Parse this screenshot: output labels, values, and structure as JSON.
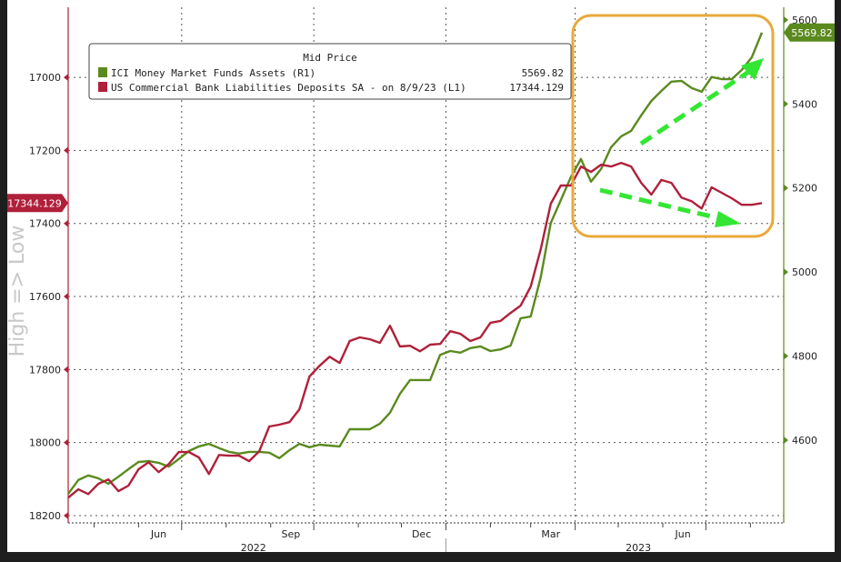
{
  "chart_data": {
    "type": "line",
    "legend": {
      "title": "Mid Price",
      "placement": "top-left",
      "entries": [
        {
          "label": "ICI Money Market Funds Assets  (R1)",
          "value": "5569.82",
          "color": "#5a8a1e"
        },
        {
          "label": "US Commercial Bank Liabilities Deposits SA -  on 8/9/23  (L1)",
          "value": "17344.129",
          "color": "#b0203a"
        }
      ]
    },
    "ylabel_left": "High => Low",
    "left_axis": {
      "inverted": true,
      "range": [
        16808,
        18220
      ],
      "ticks": [
        17000,
        17200,
        17400,
        17600,
        17800,
        18000,
        18200
      ],
      "color": "#b0203a"
    },
    "right_axis": {
      "range": [
        4403,
        5630
      ],
      "ticks": [
        4600,
        4800,
        5000,
        5200,
        5400,
        5600
      ],
      "color": "#5a8a1e"
    },
    "x_axis": {
      "start": "2022-04-13",
      "end": "2023-08-09",
      "month_labels": [
        {
          "label": "Jun",
          "date": "2022-06-15"
        },
        {
          "label": "Sep",
          "date": "2022-09-15"
        },
        {
          "label": "Dec",
          "date": "2022-12-15"
        },
        {
          "label": "Mar",
          "date": "2023-03-15"
        },
        {
          "label": "Jun",
          "date": "2023-06-15"
        }
      ],
      "year_labels": [
        {
          "label": "2022",
          "date": "2022-08-20"
        },
        {
          "label": "2023",
          "date": "2023-05-15"
        }
      ]
    },
    "grid": true,
    "frequency": "weekly",
    "series": [
      {
        "name": "ICI Money Market Funds Assets",
        "axis": "right",
        "color": "#5a8a1e",
        "values": [
          4472,
          4505,
          4516,
          4509,
          4496,
          4513,
          4531,
          4548,
          4550,
          4546,
          4537,
          4555,
          4574,
          4585,
          4591,
          4581,
          4572,
          4568,
          4572,
          4572,
          4570,
          4557,
          4576,
          4591,
          4583,
          4589,
          4587,
          4585,
          4626,
          4626,
          4626,
          4639,
          4665,
          4710,
          4743,
          4743,
          4743,
          4803,
          4812,
          4808,
          4819,
          4823,
          4812,
          4816,
          4825,
          4890,
          4894,
          4987,
          5117,
          5171,
          5226,
          5269,
          5215,
          5245,
          5297,
          5323,
          5336,
          5373,
          5407,
          5431,
          5453,
          5455,
          5438,
          5429,
          5464,
          5459,
          5459,
          5481,
          5511,
          5569.82
        ]
      },
      {
        "name": "US Commercial Bank Liabilities Deposits SA",
        "axis": "left",
        "color": "#b0203a",
        "values": [
          18151,
          18128,
          18141,
          18113,
          18101,
          18133,
          18118,
          18073,
          18054,
          18081,
          18059,
          18026,
          18026,
          18041,
          18086,
          18034,
          18036,
          18036,
          18051,
          18024,
          17956,
          17951,
          17944,
          17909,
          17819,
          17790,
          17765,
          17782,
          17722,
          17712,
          17717,
          17727,
          17680,
          17737,
          17735,
          17750,
          17732,
          17730,
          17695,
          17702,
          17722,
          17712,
          17672,
          17667,
          17645,
          17625,
          17573,
          17471,
          17346,
          17296,
          17296,
          17244,
          17259,
          17239,
          17244,
          17234,
          17244,
          17289,
          17321,
          17281,
          17289,
          17329,
          17339,
          17359,
          17301,
          17316,
          17331,
          17349,
          17349,
          17344.129
        ]
      }
    ],
    "last_value_tags": {
      "left": "17344.129",
      "right": "5569.82"
    },
    "annotations": {
      "highlight_box_color": "#e8a93a",
      "arrow_color": "#33e633",
      "arrows": [
        "up-trend (money market funds)",
        "down-trend (bank deposits)"
      ]
    }
  }
}
